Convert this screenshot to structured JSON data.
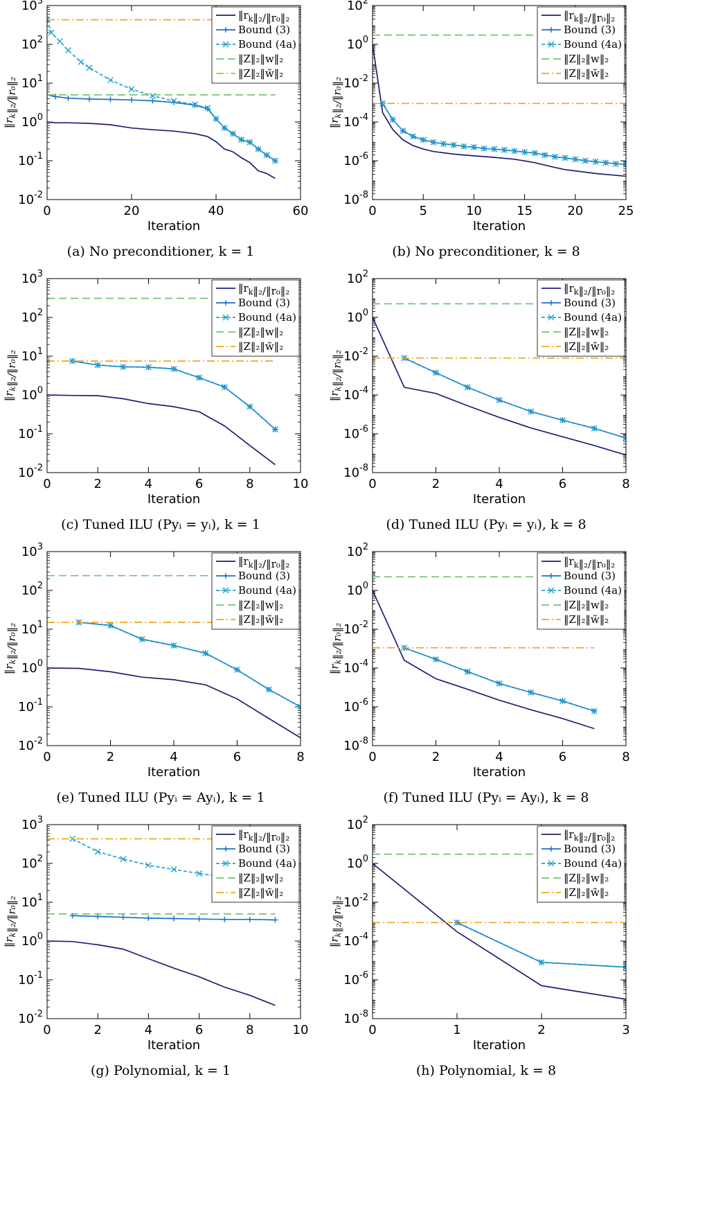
{
  "colors": {
    "residual": "#1F1F70",
    "bound3": "#1B6FC9",
    "bound4a": "#1FA5C9",
    "zw": "#72C472",
    "zw_tilde": "#F2A41C"
  },
  "legend_labels": [
    "‖r_k‖₂/‖r₀‖₂",
    "Bound (3)",
    "Bound (4a)",
    "‖Z‖₂‖w‖₂",
    "‖Z‖₂‖w̃‖₂"
  ],
  "chart_data": [
    {
      "id": "a",
      "caption_letter": "(a)",
      "caption_text": "No preconditioner, k = 1",
      "type": "line",
      "y_log": true,
      "xlabel": "Iteration",
      "ylabel": "‖r_k‖₂/‖r₀‖₂",
      "xlim": [
        0,
        60
      ],
      "xticks": [
        "0",
        "20",
        "40",
        "60"
      ],
      "ylim_exp": [
        -2,
        3
      ],
      "legend": "top-right",
      "series": [
        {
          "name": "‖r_k‖₂/‖r₀‖₂",
          "x": [
            0,
            2,
            5,
            10,
            15,
            20,
            25,
            30,
            35,
            38,
            40,
            42,
            44,
            46,
            48,
            50,
            52,
            54
          ],
          "y": [
            1.0,
            0.95,
            0.95,
            0.92,
            0.85,
            0.7,
            0.63,
            0.58,
            0.5,
            0.42,
            0.31,
            0.2,
            0.17,
            0.12,
            0.09,
            0.055,
            0.047,
            0.035
          ]
        },
        {
          "name": "Bound (3)",
          "x": [
            0,
            2,
            5,
            10,
            15,
            20,
            25,
            30,
            35,
            38,
            40,
            42,
            44,
            46,
            48,
            50,
            52,
            54
          ],
          "y": [
            5.0,
            4.5,
            4.1,
            3.9,
            3.8,
            3.7,
            3.5,
            3.2,
            2.7,
            2.2,
            1.2,
            0.7,
            0.5,
            0.35,
            0.3,
            0.2,
            0.14,
            0.1
          ]
        },
        {
          "name": "Bound (4a)",
          "x": [
            0,
            1,
            3,
            5,
            8,
            10,
            15,
            20,
            25,
            30,
            35,
            38,
            40,
            42,
            44,
            46,
            48,
            50,
            52,
            54
          ],
          "y": [
            430,
            200,
            120,
            70,
            35,
            25,
            12,
            7,
            4.7,
            3.5,
            2.8,
            2.3,
            1.2,
            0.7,
            0.5,
            0.35,
            0.3,
            0.2,
            0.14,
            0.1
          ]
        },
        {
          "name": "‖Z‖₂‖w‖₂",
          "x": [
            0,
            54
          ],
          "y": [
            5,
            5
          ]
        },
        {
          "name": "‖Z‖₂‖w̃‖₂",
          "x": [
            0,
            54
          ],
          "y": [
            430,
            430
          ]
        }
      ]
    },
    {
      "id": "b",
      "caption_letter": "(b)",
      "caption_text": "No preconditioner, k = 8",
      "type": "line",
      "y_log": true,
      "xlabel": "Iteration",
      "ylabel": "‖r_k‖₂/‖r₀‖₂",
      "xlim": [
        0,
        25
      ],
      "xticks": [
        "0",
        "5",
        "10",
        "15",
        "20",
        "25"
      ],
      "ylim_exp": [
        -8,
        2
      ],
      "legend": "top-right",
      "series": [
        {
          "name": "‖r_k‖₂/‖r₀‖₂",
          "x": [
            0,
            1,
            2,
            3,
            4,
            5,
            6,
            8,
            10,
            12,
            14,
            16,
            17,
            18,
            19,
            20,
            22,
            25
          ],
          "y": [
            1.0,
            0.0003,
            4e-05,
            1.2e-05,
            6e-06,
            4e-06,
            3e-06,
            2.2e-06,
            1.8e-06,
            1.5e-06,
            1.2e-06,
            8e-07,
            6e-07,
            4.5e-07,
            3.5e-07,
            3e-07,
            2.2e-07,
            1.6e-07
          ]
        },
        {
          "name": "Bound (3)",
          "x": [
            1,
            2,
            3,
            4,
            5,
            6,
            7,
            8,
            9,
            10,
            11,
            12,
            13,
            14,
            15,
            16,
            17,
            18,
            19,
            20,
            21,
            22,
            23,
            24,
            25
          ],
          "y": [
            0.0009,
            0.00013,
            3.5e-05,
            1.8e-05,
            1.2e-05,
            9e-06,
            7.5e-06,
            6.5e-06,
            5.5e-06,
            5e-06,
            4.3e-06,
            4e-06,
            3.6e-06,
            3.2e-06,
            2.8e-06,
            2.5e-06,
            2e-06,
            1.6e-06,
            1.4e-06,
            1.2e-06,
            1e-06,
            9e-07,
            8e-07,
            7e-07,
            6.5e-07
          ]
        },
        {
          "name": "Bound (4a)",
          "x": [
            1,
            2,
            3,
            4,
            5,
            6,
            7,
            8,
            9,
            10,
            11,
            12,
            13,
            14,
            15,
            16,
            17,
            18,
            19,
            20,
            21,
            22,
            23,
            24,
            25
          ],
          "y": [
            0.0009,
            0.00013,
            3.5e-05,
            1.8e-05,
            1.2e-05,
            9e-06,
            7.5e-06,
            6.5e-06,
            5.5e-06,
            5e-06,
            4.3e-06,
            4e-06,
            3.6e-06,
            3.2e-06,
            2.8e-06,
            2.5e-06,
            2e-06,
            1.6e-06,
            1.4e-06,
            1.2e-06,
            1e-06,
            9e-07,
            8e-07,
            7e-07,
            6.5e-07
          ]
        },
        {
          "name": "‖Z‖₂‖w‖₂",
          "x": [
            0,
            25
          ],
          "y": [
            3,
            3
          ]
        },
        {
          "name": "‖Z‖₂‖w̃‖₂",
          "x": [
            0,
            25
          ],
          "y": [
            0.0009,
            0.0009
          ]
        }
      ]
    },
    {
      "id": "c",
      "caption_letter": "(c)",
      "caption_text": "Tuned ILU (Pyᵢ = yᵢ), k = 1",
      "type": "line",
      "y_log": true,
      "xlabel": "Iteration",
      "ylabel": "‖r_k‖₂/‖r₀‖₂",
      "xlim": [
        0,
        10
      ],
      "xticks": [
        "0",
        "2",
        "4",
        "6",
        "8",
        "10"
      ],
      "ylim_exp": [
        -2,
        3
      ],
      "legend": "top-right",
      "series": [
        {
          "name": "‖r_k‖₂/‖r₀‖₂",
          "x": [
            0,
            1,
            2,
            3,
            4,
            5,
            6,
            7,
            8,
            9
          ],
          "y": [
            1.0,
            0.97,
            0.96,
            0.8,
            0.6,
            0.5,
            0.37,
            0.16,
            0.05,
            0.016
          ]
        },
        {
          "name": "Bound (3)",
          "x": [
            1,
            2,
            3,
            4,
            5,
            6,
            7,
            8,
            9
          ],
          "y": [
            7.5,
            5.9,
            5.3,
            5.2,
            4.7,
            2.8,
            1.6,
            0.5,
            0.13
          ]
        },
        {
          "name": "Bound (4a)",
          "x": [
            1,
            2,
            3,
            4,
            5,
            6,
            7,
            8,
            9
          ],
          "y": [
            7.5,
            5.9,
            5.3,
            5.2,
            4.7,
            2.8,
            1.6,
            0.5,
            0.13
          ]
        },
        {
          "name": "‖Z‖₂‖w‖₂",
          "x": [
            0,
            9
          ],
          "y": [
            310,
            310
          ]
        },
        {
          "name": "‖Z‖₂‖w̃‖₂",
          "x": [
            0,
            9
          ],
          "y": [
            7.5,
            7.5
          ]
        }
      ]
    },
    {
      "id": "d",
      "caption_letter": "(d)",
      "caption_text": "Tuned ILU (Pyᵢ = yᵢ), k = 8",
      "type": "line",
      "y_log": true,
      "xlabel": "Iteration",
      "ylabel": "‖r_k‖₂/‖r₀‖₂",
      "xlim": [
        0,
        8
      ],
      "xticks": [
        "0",
        "2",
        "4",
        "6",
        "8"
      ],
      "ylim_exp": [
        -8,
        2
      ],
      "legend": "top-right",
      "series": [
        {
          "name": "‖r_k‖₂/‖r₀‖₂",
          "x": [
            0,
            1,
            2,
            3,
            4,
            5,
            6,
            7,
            8
          ],
          "y": [
            1.0,
            0.00025,
            0.00012,
            2.8e-05,
            7e-06,
            2e-06,
            7e-07,
            2.5e-07,
            8e-08
          ]
        },
        {
          "name": "Bound (3)",
          "x": [
            1,
            2,
            3,
            4,
            5,
            6,
            7,
            8
          ],
          "y": [
            0.008,
            0.0014,
            0.00025,
            5.5e-05,
            1.4e-05,
            5e-06,
            1.9e-06,
            6e-07
          ]
        },
        {
          "name": "Bound (4a)",
          "x": [
            1,
            2,
            3,
            4,
            5,
            6,
            7,
            8
          ],
          "y": [
            0.008,
            0.0014,
            0.00025,
            5.5e-05,
            1.4e-05,
            5e-06,
            1.9e-06,
            6e-07
          ]
        },
        {
          "name": "‖Z‖₂‖w‖₂",
          "x": [
            0,
            8
          ],
          "y": [
            5,
            5
          ]
        },
        {
          "name": "‖Z‖₂‖w̃‖₂",
          "x": [
            0,
            8
          ],
          "y": [
            0.008,
            0.008
          ]
        }
      ]
    },
    {
      "id": "e",
      "caption_letter": "(e)",
      "caption_text": "Tuned ILU (Pyᵢ = Ayᵢ), k = 1",
      "type": "line",
      "y_log": true,
      "xlabel": "Iteration",
      "ylabel": "‖r_k‖₂/‖r₀‖₂",
      "xlim": [
        0,
        8
      ],
      "xticks": [
        "0",
        "2",
        "4",
        "6",
        "8"
      ],
      "ylim_exp": [
        -2,
        3
      ],
      "legend": "top-right",
      "series": [
        {
          "name": "‖r_k‖₂/‖r₀‖₂",
          "x": [
            0,
            1,
            2,
            3,
            4,
            5,
            6,
            7,
            8
          ],
          "y": [
            1.0,
            0.98,
            0.8,
            0.58,
            0.5,
            0.37,
            0.16,
            0.05,
            0.016
          ]
        },
        {
          "name": "Bound (3)",
          "x": [
            1,
            2,
            3,
            4,
            5,
            6,
            7,
            8
          ],
          "y": [
            15,
            12.5,
            5.5,
            3.8,
            2.4,
            0.9,
            0.28,
            0.1
          ]
        },
        {
          "name": "Bound (4a)",
          "x": [
            1,
            2,
            3,
            4,
            5,
            6,
            7,
            8
          ],
          "y": [
            15,
            12.5,
            5.5,
            3.8,
            2.4,
            0.9,
            0.28,
            0.1
          ]
        },
        {
          "name": "‖Z‖₂‖w‖₂",
          "x": [
            0,
            8
          ],
          "y": [
            240,
            240
          ]
        },
        {
          "name": "‖Z‖₂‖w̃‖₂",
          "x": [
            0,
            8
          ],
          "y": [
            15,
            15
          ]
        }
      ]
    },
    {
      "id": "f",
      "caption_letter": "(f)",
      "caption_text": "Tuned ILU (Pyᵢ = Ayᵢ), k = 8",
      "type": "line",
      "y_log": true,
      "xlabel": "Iteration",
      "ylabel": "‖r_k‖₂/‖r₀‖₂",
      "xlim": [
        0,
        8
      ],
      "xticks": [
        "0",
        "2",
        "4",
        "6",
        "8"
      ],
      "ylim_exp": [
        -8,
        2
      ],
      "legend": "top-right",
      "series": [
        {
          "name": "‖r_k‖₂/‖r₀‖₂",
          "x": [
            0,
            1,
            2,
            3,
            4,
            5,
            6,
            7
          ],
          "y": [
            1.0,
            0.00025,
            2.8e-05,
            8e-06,
            2.2e-06,
            7e-07,
            2.5e-07,
            7.5e-08
          ]
        },
        {
          "name": "Bound (3)",
          "x": [
            1,
            2,
            3,
            4,
            5,
            6,
            7
          ],
          "y": [
            0.0011,
            0.00028,
            6.5e-05,
            1.6e-05,
            5.5e-06,
            2e-06,
            6e-07
          ]
        },
        {
          "name": "Bound (4a)",
          "x": [
            1,
            2,
            3,
            4,
            5,
            6,
            7
          ],
          "y": [
            0.0011,
            0.00028,
            6.5e-05,
            1.6e-05,
            5.5e-06,
            2e-06,
            6e-07
          ]
        },
        {
          "name": "‖Z‖₂‖w‖₂",
          "x": [
            0,
            7
          ],
          "y": [
            5,
            5
          ]
        },
        {
          "name": "‖Z‖₂‖w̃‖₂",
          "x": [
            0,
            7
          ],
          "y": [
            0.0011,
            0.0011
          ]
        }
      ]
    },
    {
      "id": "g",
      "caption_letter": "(g)",
      "caption_text": "Polynomial, k = 1",
      "type": "line",
      "y_log": true,
      "xlabel": "Iteration",
      "ylabel": "‖r_k‖₂/‖r₀‖₂",
      "xlim": [
        0,
        10
      ],
      "xticks": [
        "0",
        "2",
        "4",
        "6",
        "8",
        "10"
      ],
      "ylim_exp": [
        -2,
        3
      ],
      "legend": "top-right",
      "series": [
        {
          "name": "‖r_k‖₂/‖r₀‖₂",
          "x": [
            0,
            1,
            2,
            3,
            4,
            5,
            6,
            7,
            8,
            9
          ],
          "y": [
            1.0,
            0.97,
            0.8,
            0.62,
            0.35,
            0.2,
            0.12,
            0.065,
            0.04,
            0.022
          ]
        },
        {
          "name": "Bound (3)",
          "x": [
            1,
            2,
            3,
            4,
            5,
            6,
            7,
            8,
            9
          ],
          "y": [
            4.5,
            4.3,
            4.1,
            3.9,
            3.8,
            3.7,
            3.6,
            3.6,
            3.5
          ]
        },
        {
          "name": "Bound (4a)",
          "x": [
            1,
            2,
            3,
            4,
            5,
            6,
            7,
            8,
            9
          ],
          "y": [
            430,
            200,
            130,
            90,
            70,
            55,
            45,
            40,
            35
          ]
        },
        {
          "name": "‖Z‖₂‖w‖₂",
          "x": [
            0,
            9
          ],
          "y": [
            5,
            5
          ]
        },
        {
          "name": "‖Z‖₂‖w̃‖₂",
          "x": [
            0,
            9
          ],
          "y": [
            430,
            430
          ]
        }
      ]
    },
    {
      "id": "h",
      "caption_letter": "(h)",
      "caption_text": "Polynomial, k = 8",
      "type": "line",
      "y_log": true,
      "xlabel": "Iteration",
      "ylabel": "‖r_k‖₂/‖r₀‖₂",
      "xlim": [
        0,
        3
      ],
      "xticks": [
        "0",
        "1",
        "2",
        "3"
      ],
      "ylim_exp": [
        -8,
        2
      ],
      "legend": "top-right",
      "series": [
        {
          "name": "‖r_k‖₂/‖r₀‖₂",
          "x": [
            0,
            1,
            2,
            3
          ],
          "y": [
            1.0,
            0.0003,
            5e-07,
            1e-07
          ]
        },
        {
          "name": "Bound (3)",
          "x": [
            1,
            2,
            3
          ],
          "y": [
            0.0009,
            8e-06,
            4.5e-06
          ]
        },
        {
          "name": "Bound (4a)",
          "x": [
            1,
            2,
            3
          ],
          "y": [
            0.0009,
            8e-06,
            4.5e-06
          ]
        },
        {
          "name": "‖Z‖₂‖w‖₂",
          "x": [
            0,
            3
          ],
          "y": [
            3,
            3
          ]
        },
        {
          "name": "‖Z‖₂‖w̃‖₂",
          "x": [
            0,
            3
          ],
          "y": [
            0.0009,
            0.0009
          ]
        }
      ]
    }
  ]
}
